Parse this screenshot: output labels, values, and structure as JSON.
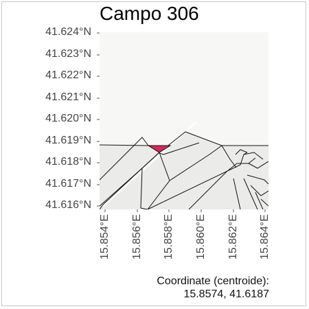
{
  "title": "Campo 306",
  "axes": {
    "y_ticks": [
      "41.624°N",
      "41.623°N",
      "41.622°N",
      "41.621°N",
      "41.620°N",
      "41.619°N",
      "41.618°N",
      "41.617°N",
      "41.616°N"
    ],
    "x_ticks": [
      "15.854°E",
      "15.856°E",
      "15.858°E",
      "15.860°E",
      "15.862°E",
      "15.864°E"
    ]
  },
  "caption": {
    "line1": "Coordinate (centroide):",
    "line2": "15.8574, 41.6187"
  },
  "colors": {
    "panel": "#f7f7f5",
    "parcel_fill": "#ebebea",
    "parcel_stroke": "#111111",
    "highlight": "#d42a5a"
  }
}
